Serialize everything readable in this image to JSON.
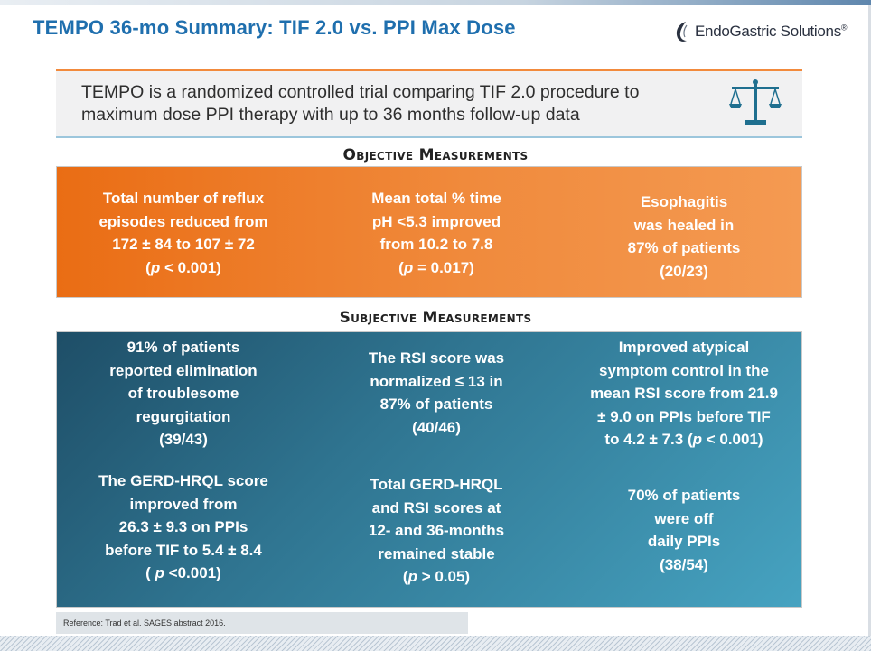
{
  "title": "TEMPO 36-mo Summary: TIF 2.0 vs. PPI Max Dose",
  "logo": {
    "name": "EndoGastric Solutions",
    "reg": "®",
    "icon": "endogastric-swirl-icon"
  },
  "intro": {
    "line1": "TEMPO is a randomized controlled trial comparing TIF 2.0 procedure to",
    "line2": "maximum dose PPI therapy with up to 36 months follow-up data",
    "icon": "balance-scale-icon"
  },
  "colors": {
    "title": "#1f6fae",
    "orange": "#f08a3c",
    "teal": "#2f7490"
  },
  "objective": {
    "heading": "Objective Measurements",
    "cells": [
      {
        "lines": [
          "Total number of reflux",
          "episodes reduced from",
          "172 ± 84 to 107 ± 72"
        ],
        "p_open": "(",
        "p": "p",
        "p_rest": " < 0.001)"
      },
      {
        "lines": [
          "Mean total % time",
          "pH <5.3 improved",
          "from 10.2 to 7.8"
        ],
        "p_open": "(",
        "p": "p",
        "p_rest": " = 0.017)"
      },
      {
        "lines": [
          "Esophagitis",
          "was healed in",
          "87% of patients",
          "(20/23)"
        ]
      }
    ]
  },
  "subjective": {
    "heading": "Subjective Measurements",
    "cells": [
      {
        "lines": [
          "91% of patients",
          "reported elimination",
          "of troublesome",
          "regurgitation",
          "(39/43)"
        ]
      },
      {
        "lines": [
          "The RSI score was",
          "normalized ≤ 13 in",
          "87% of patients",
          "(40/46)"
        ]
      },
      {
        "lines": [
          "Improved atypical",
          "symptom control in the",
          "mean RSI score from 21.9",
          "± 9.0 on PPIs before TIF"
        ],
        "last_pre": "to 4.2 ± 7.3 (",
        "p": "p",
        "p_rest": " < 0.001)"
      },
      {
        "lines": [
          "The GERD-HRQL score",
          "improved from",
          "26.3 ± 9.3 on PPIs",
          "before TIF to 5.4 ± 8.4"
        ],
        "p_open": "( ",
        "p": "p",
        "p_rest": " <0.001)"
      },
      {
        "lines": [
          "Total GERD-HRQL",
          "and RSI scores at",
          "12- and 36-months",
          "remained stable"
        ],
        "p_open": "(",
        "p": "p",
        "p_rest": " > 0.05)"
      },
      {
        "lines": [
          "70% of patients",
          "were off",
          "daily PPIs",
          "(38/54)"
        ]
      }
    ]
  },
  "reference": "Reference: Trad et al. SAGES abstract 2016."
}
